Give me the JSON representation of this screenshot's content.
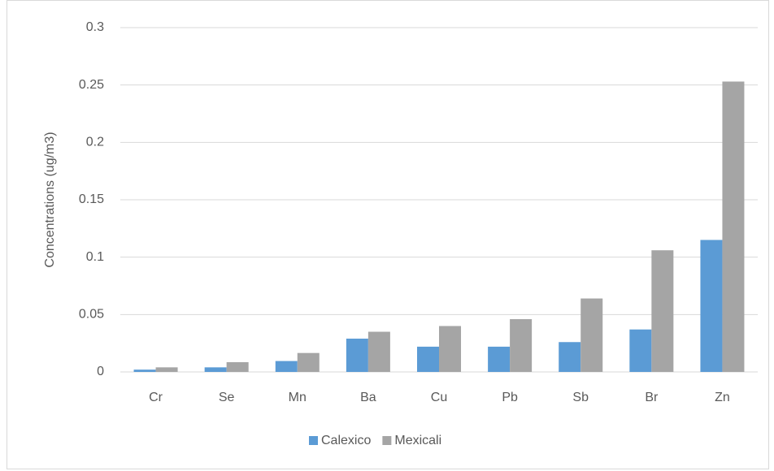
{
  "chart_data": {
    "type": "bar",
    "y_label": "Concentrations (ug/m3)",
    "categories": [
      "Cr",
      "Se",
      "Mn",
      "Ba",
      "Cu",
      "Pb",
      "Sb",
      "Br",
      "Zn"
    ],
    "series": [
      {
        "name": "Calexico",
        "color": "#5b9bd5",
        "values": [
          0.002,
          0.004,
          0.0095,
          0.029,
          0.022,
          0.022,
          0.026,
          0.037,
          0.115
        ]
      },
      {
        "name": "Mexicali",
        "color": "#a5a5a5",
        "values": [
          0.004,
          0.0085,
          0.0165,
          0.035,
          0.04,
          0.046,
          0.064,
          0.106,
          0.253
        ]
      }
    ],
    "ylim": [
      0,
      0.3
    ],
    "yticks": [
      0,
      0.05,
      0.1,
      0.15,
      0.2,
      0.25,
      0.3
    ],
    "grid": true,
    "legend": "bottom"
  }
}
